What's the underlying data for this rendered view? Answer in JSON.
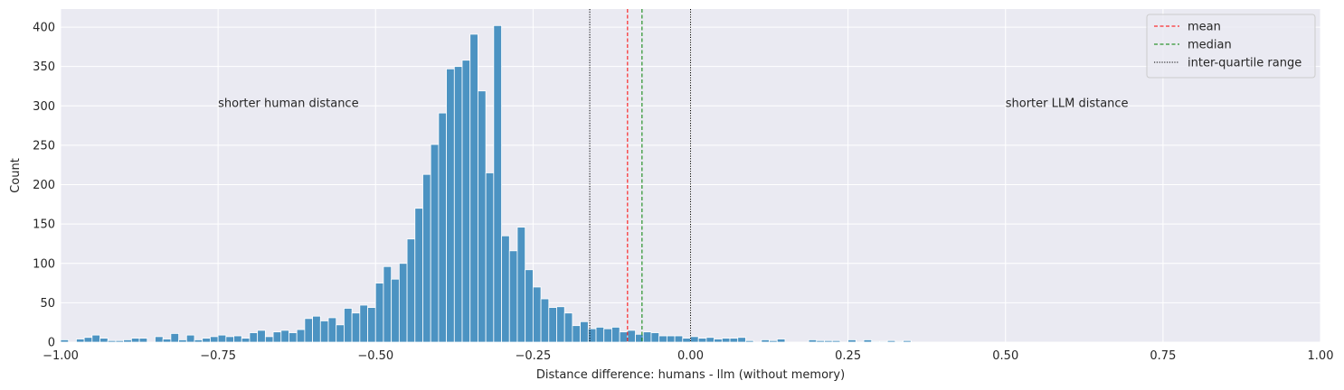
{
  "chart_data": {
    "type": "bar",
    "xlabel": "Distance difference: humans - llm (without memory)",
    "ylabel": "Count",
    "xlim": [
      -1.0,
      1.0
    ],
    "ylim": [
      0,
      423
    ],
    "xticks": [
      -1.0,
      -0.75,
      -0.5,
      -0.25,
      0.0,
      0.25,
      0.5,
      0.75,
      1.0
    ],
    "xtick_labels": [
      "−1.00",
      "−0.75",
      "−0.50",
      "−0.25",
      "0.00",
      "0.25",
      "0.50",
      "0.75",
      "1.00"
    ],
    "yticks": [
      0,
      50,
      100,
      150,
      200,
      250,
      300,
      350,
      400
    ],
    "ytick_labels": [
      "0",
      "50",
      "100",
      "150",
      "200",
      "250",
      "300",
      "350",
      "400"
    ],
    "grid": true,
    "bar_color": "#4c93c2",
    "background_color": "#eaeaf2",
    "bin_start": -1.0,
    "bin_width": 0.0125,
    "counts": [
      3,
      0,
      4,
      6,
      9,
      5,
      2,
      2,
      3,
      5,
      5,
      0,
      7,
      4,
      11,
      3,
      9,
      3,
      5,
      7,
      9,
      7,
      8,
      5,
      12,
      15,
      7,
      13,
      15,
      12,
      16,
      30,
      33,
      27,
      31,
      22,
      43,
      37,
      47,
      44,
      75,
      96,
      80,
      100,
      131,
      170,
      213,
      251,
      291,
      347,
      350,
      358,
      391,
      319,
      215,
      402,
      135,
      116,
      146,
      92,
      70,
      55,
      44,
      45,
      37,
      21,
      26,
      17,
      19,
      17,
      19,
      13,
      15,
      10,
      13,
      12,
      8,
      8,
      8,
      5,
      7,
      5,
      6,
      4,
      5,
      5,
      6,
      2,
      0,
      3,
      2,
      4,
      0,
      0,
      0,
      3,
      2,
      2,
      2,
      0,
      3,
      0,
      3,
      1,
      1,
      2,
      1,
      2
    ],
    "vlines": [
      {
        "label": "mean",
        "x": -0.1,
        "color": "#ff0000",
        "style": "dashed"
      },
      {
        "label": "median",
        "x": -0.077,
        "color": "#008000",
        "style": "dashed"
      },
      {
        "label": "inter-quartile range",
        "x": -0.16,
        "color": "#000000",
        "style": "dotted"
      },
      {
        "label": "inter-quartile range",
        "x": 0.0,
        "color": "#000000",
        "style": "dotted"
      }
    ],
    "legend": {
      "placement": "top-right",
      "entries": [
        {
          "label": "mean",
          "color": "#ff0000",
          "style": "dashed"
        },
        {
          "label": "median",
          "color": "#008000",
          "style": "dashed"
        },
        {
          "label": "inter-quartile range",
          "color": "#000000",
          "style": "dotted"
        }
      ]
    },
    "annotations": [
      {
        "text": "shorter human distance",
        "x": -0.75,
        "y": 300
      },
      {
        "text": "shorter LLM distance",
        "x": 0.5,
        "y": 300
      }
    ]
  }
}
